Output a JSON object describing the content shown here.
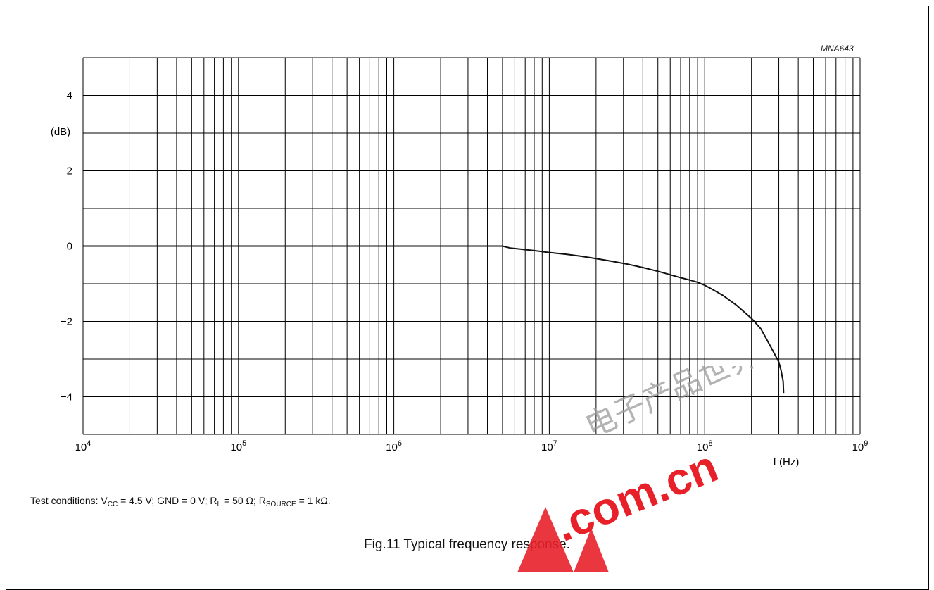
{
  "figure": {
    "ref_code": "MNA643",
    "caption": "Fig.11  Typical frequency response.",
    "test_conditions": {
      "prefix": "Test conditions: V",
      "vcc_sub": "CC",
      "vcc_val": " = 4.5 V; GND = 0 V; R",
      "rl_sub": "L",
      "rl_val": " = 50 Ω; R",
      "rs_sub": "SOURCE",
      "rs_val": " = 1 kΩ."
    },
    "watermark": {
      "text": ".com.cn",
      "chinese": "电子产品世界",
      "colors": {
        "red": "#e8202a",
        "gray": "#9a9a9a"
      }
    }
  },
  "chart_data": {
    "type": "line",
    "title": "",
    "xlabel": "f (Hz)",
    "ylabel": "(dB)",
    "x_scale": "log",
    "xlim": [
      10000,
      1000000000
    ],
    "ylim": [
      -5,
      5
    ],
    "grid": true,
    "x_ticks": [
      {
        "base": "10",
        "exp": "4"
      },
      {
        "base": "10",
        "exp": "5"
      },
      {
        "base": "10",
        "exp": "6"
      },
      {
        "base": "10",
        "exp": "7"
      },
      {
        "base": "10",
        "exp": "8"
      },
      {
        "base": "10",
        "exp": "9"
      }
    ],
    "y_ticks": [
      "4",
      "2",
      "0",
      "−2",
      "−4"
    ],
    "y_tick_values": [
      4,
      2,
      0,
      -2,
      -4
    ],
    "series": [
      {
        "color": "#111111",
        "x": [
          10000,
          100000,
          1000000,
          5000000,
          5600000,
          6500000,
          8000000,
          10000000,
          13000000,
          16000000,
          20000000,
          25000000,
          32000000,
          40000000,
          50000000,
          60000000,
          70000000,
          80000000,
          90000000,
          100000000,
          110000000,
          130000000,
          160000000,
          200000000,
          230000000,
          270000000,
          300000000,
          310000000,
          320000000,
          322000000
        ],
        "y": [
          0,
          0,
          0,
          0,
          -0.05,
          -0.08,
          -0.12,
          -0.17,
          -0.22,
          -0.27,
          -0.33,
          -0.4,
          -0.48,
          -0.57,
          -0.67,
          -0.76,
          -0.84,
          -0.9,
          -0.96,
          -1.04,
          -1.13,
          -1.3,
          -1.57,
          -1.92,
          -2.2,
          -2.72,
          -3.08,
          -3.3,
          -3.6,
          -3.9
        ]
      }
    ]
  }
}
